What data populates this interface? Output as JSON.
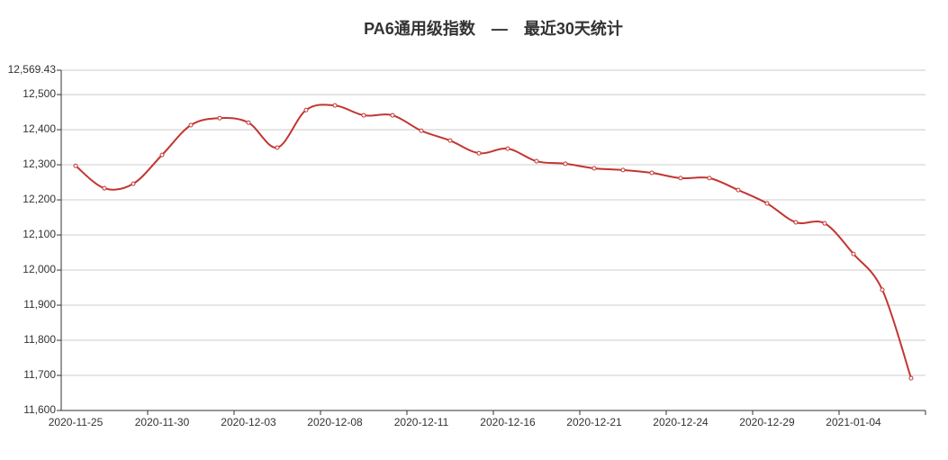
{
  "chart_data": {
    "type": "line",
    "title": "PA6通用级指数　—　最近30天统计",
    "categories": [
      "2020-11-25",
      null,
      null,
      "2020-11-30",
      null,
      null,
      "2020-12-03",
      null,
      null,
      "2020-12-08",
      null,
      null,
      "2020-12-11",
      null,
      null,
      "2020-12-16",
      null,
      null,
      "2020-12-21",
      null,
      null,
      "2020-12-24",
      null,
      null,
      "2020-12-29",
      null,
      null,
      "2021-01-04",
      null,
      null
    ],
    "series": [
      {
        "color": "#c23531",
        "values": [
          12297,
          12233,
          12246,
          12328,
          12413,
          12433,
          12420,
          12349,
          12456,
          12469,
          12441,
          12441,
          12397,
          12369,
          12333,
          12346,
          12310,
          12303,
          12290,
          12285,
          12277,
          12262,
          12262,
          12228,
          12190,
          12136,
          12133,
          12046,
          11944,
          11692
        ]
      }
    ],
    "ylim": [
      11600,
      12569.43
    ],
    "yticks": [
      {
        "value": 11600,
        "label": "11,600"
      },
      {
        "value": 11700,
        "label": "11,700"
      },
      {
        "value": 11800,
        "label": "11,800"
      },
      {
        "value": 11900,
        "label": "11,900"
      },
      {
        "value": 12000,
        "label": "12,000"
      },
      {
        "value": 12100,
        "label": "12,100"
      },
      {
        "value": 12200,
        "label": "12,200"
      },
      {
        "value": 12300,
        "label": "12,300"
      },
      {
        "value": 12400,
        "label": "12,400"
      },
      {
        "value": 12500,
        "label": "12,500"
      },
      {
        "value": 12569.43,
        "label": "12,569.43"
      }
    ],
    "grid": true,
    "smooth": true
  }
}
